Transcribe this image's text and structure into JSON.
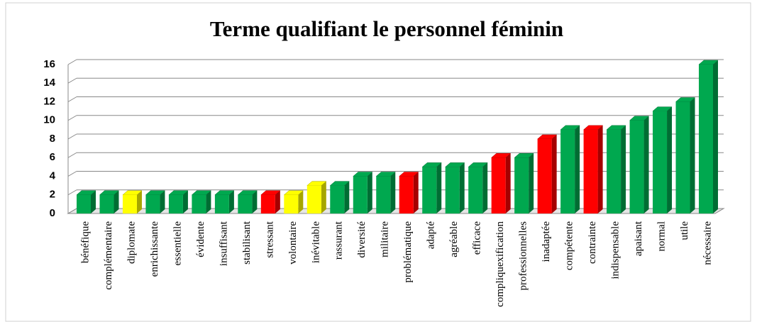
{
  "chart_data": {
    "type": "bar3d",
    "title": "Terme qualifiant le personnel féminin",
    "categories": [
      "bénéfique",
      "complémentaire",
      "diplomate",
      "enrichissante",
      "essentielle",
      "évidente",
      "insuffisant",
      "stabilisant",
      "stressant",
      "volontaire",
      "inévitable",
      "rassurant",
      "diversité",
      "militaire",
      "problématique",
      "adapté",
      "agréable",
      "efficace",
      "compliquexification",
      "professionnelles",
      "inadaptée",
      "compétente",
      "contrainte",
      "indispensable",
      "apaisant",
      "normal",
      "utile",
      "nécessaire"
    ],
    "values": [
      2,
      2,
      2,
      2,
      2,
      2,
      2,
      2,
      2,
      2,
      3,
      3,
      4,
      4,
      4,
      5,
      5,
      5,
      6,
      6,
      8,
      9,
      9,
      9,
      10,
      11,
      12,
      16
    ],
    "colors": [
      "#00a84f",
      "#00a84f",
      "#ffff00",
      "#00a84f",
      "#00a84f",
      "#00a84f",
      "#00a84f",
      "#00a84f",
      "#ff0000",
      "#ffff00",
      "#ffff00",
      "#00a84f",
      "#00a84f",
      "#00a84f",
      "#ff0000",
      "#00a84f",
      "#00a84f",
      "#00a84f",
      "#ff0000",
      "#00a84f",
      "#ff0000",
      "#00a84f",
      "#ff0000",
      "#00a84f",
      "#00a84f",
      "#00a84f",
      "#00a84f",
      "#00a84f"
    ],
    "ylim": [
      0,
      16
    ],
    "yticks": [
      0,
      2,
      4,
      6,
      8,
      10,
      12,
      14,
      16
    ],
    "grid": true
  }
}
